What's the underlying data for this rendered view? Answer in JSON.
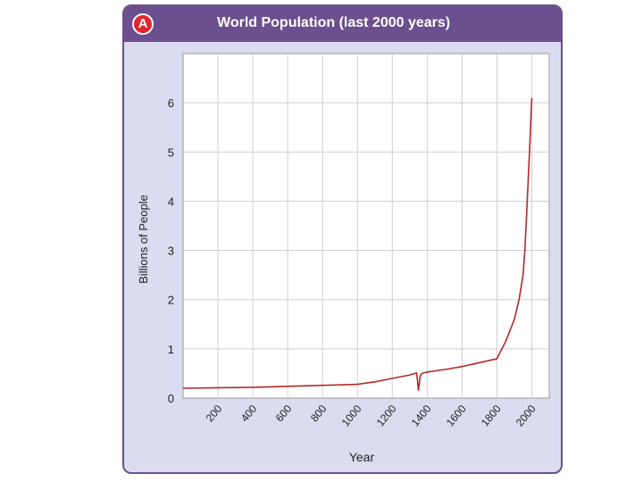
{
  "panel": {
    "badge": "A"
  },
  "chart_data": {
    "type": "line",
    "title": "World Population (last 2000 years)",
    "xlabel": "Year",
    "ylabel": "Billions of People",
    "xlim": [
      0,
      2100
    ],
    "ylim": [
      0,
      7
    ],
    "x_ticks": [
      200,
      400,
      600,
      800,
      1000,
      1200,
      1400,
      1600,
      1800,
      2000
    ],
    "x_tick_labels": [
      "200",
      "400",
      "600",
      "800",
      "1000",
      "1200",
      "1400",
      "1600",
      "1800",
      "2000"
    ],
    "y_ticks": [
      0,
      1,
      2,
      3,
      4,
      5,
      6
    ],
    "y_tick_labels": [
      "0",
      "1",
      "2",
      "3",
      "4",
      "5",
      "6"
    ],
    "grid": true,
    "colors": {
      "line": "#b22a2a",
      "header": "#6b4f8e",
      "badge": "#e4232d",
      "card": "#dcdcf0"
    },
    "series": [
      {
        "x": [
          0,
          200,
          400,
          600,
          800,
          1000,
          1100,
          1200,
          1300,
          1340,
          1350,
          1360,
          1370,
          1400,
          1500,
          1600,
          1700,
          1800,
          1850,
          1900,
          1927,
          1950,
          1960,
          1970,
          1987,
          2000
        ],
        "y": [
          0.2,
          0.21,
          0.22,
          0.24,
          0.26,
          0.28,
          0.33,
          0.4,
          0.47,
          0.51,
          0.15,
          0.45,
          0.5,
          0.53,
          0.58,
          0.64,
          0.72,
          0.8,
          1.15,
          1.6,
          2.0,
          2.5,
          3.0,
          3.7,
          5.0,
          6.1
        ]
      }
    ]
  }
}
